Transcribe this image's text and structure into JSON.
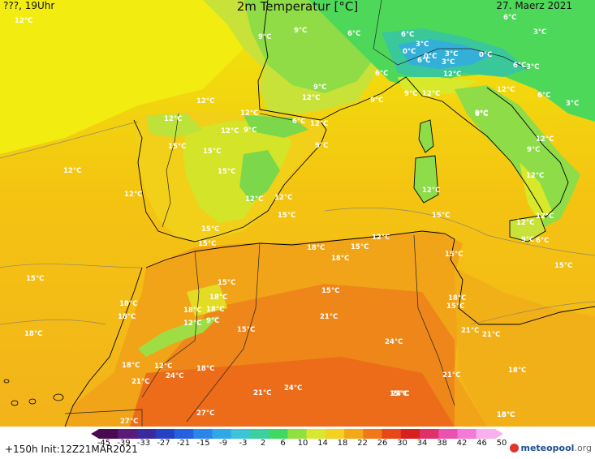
{
  "header": {
    "left": "???, 19Uhr",
    "title": "2m Temperatur [°C]",
    "right": "27. Maerz 2021"
  },
  "footer": {
    "run": "+150h  Init:12Z21MAR2021",
    "logo_name": "meteopool",
    "logo_suffix": ".org"
  },
  "legend": {
    "ticks": [
      "-45",
      "-39",
      "-33",
      "-27",
      "-21",
      "-15",
      "-9",
      "-3",
      "2",
      "6",
      "10",
      "14",
      "18",
      "22",
      "26",
      "30",
      "34",
      "38",
      "42",
      "46",
      "50"
    ],
    "colors": [
      "#4a0a52",
      "#5c1a78",
      "#3a2a9e",
      "#2540c4",
      "#2460e0",
      "#2a86e8",
      "#30a8e8",
      "#3cc4d8",
      "#3ad0a0",
      "#40d860",
      "#90e040",
      "#d8e830",
      "#f4d020",
      "#f4a818",
      "#f07818",
      "#e84818",
      "#d82020",
      "#e0306a",
      "#ec50b0",
      "#f47ad8",
      "#fab0ec"
    ]
  },
  "map_labels": [
    {
      "text": "12°C"
    },
    {
      "text": "9°C"
    },
    {
      "text": "9°C"
    },
    {
      "text": "6°C"
    },
    {
      "text": "6°C"
    },
    {
      "text": "6°C"
    },
    {
      "text": "3°C"
    },
    {
      "text": "3°C"
    },
    {
      "text": "3°C"
    },
    {
      "text": "0°C"
    },
    {
      "text": "6°C"
    },
    {
      "text": "3°C"
    },
    {
      "text": "0°C"
    },
    {
      "text": "0°C"
    },
    {
      "text": "6°C"
    },
    {
      "text": "3°C"
    },
    {
      "text": "9°C"
    },
    {
      "text": "6°C"
    },
    {
      "text": "12°C"
    },
    {
      "text": "9°C"
    },
    {
      "text": "12°C"
    },
    {
      "text": "12°C"
    },
    {
      "text": "6°C"
    },
    {
      "text": "3°C"
    },
    {
      "text": "12°C"
    },
    {
      "text": "9°C"
    },
    {
      "text": "12°C"
    },
    {
      "text": "9°C"
    },
    {
      "text": "6°C"
    },
    {
      "text": "12°C"
    },
    {
      "text": "12°C"
    },
    {
      "text": "12°C"
    },
    {
      "text": "9°C"
    },
    {
      "text": "6°C"
    },
    {
      "text": "12°C"
    },
    {
      "text": "9°C"
    },
    {
      "text": "12°C"
    },
    {
      "text": "12°C"
    },
    {
      "text": "15°C"
    },
    {
      "text": "15°C"
    },
    {
      "text": "15°C"
    },
    {
      "text": "12°C"
    },
    {
      "text": "9°C"
    },
    {
      "text": "12°C"
    },
    {
      "text": "12°C"
    },
    {
      "text": "12°C"
    },
    {
      "text": "12°C"
    },
    {
      "text": "15°C"
    },
    {
      "text": "12°C"
    },
    {
      "text": "12°C"
    },
    {
      "text": "15°C"
    },
    {
      "text": "15°C"
    },
    {
      "text": "15°C"
    },
    {
      "text": "15°C"
    },
    {
      "text": "9°C"
    },
    {
      "text": "6°C"
    },
    {
      "text": "12°C"
    },
    {
      "text": "15°C"
    },
    {
      "text": "18°C"
    },
    {
      "text": "15°C"
    },
    {
      "text": "18°C"
    },
    {
      "text": "15°C"
    },
    {
      "text": "15°C"
    },
    {
      "text": "15°C"
    },
    {
      "text": "18°C"
    },
    {
      "text": "18°C"
    },
    {
      "text": "18°C"
    },
    {
      "text": "18°C"
    },
    {
      "text": "18°C"
    },
    {
      "text": "15°C"
    },
    {
      "text": "12°C"
    },
    {
      "text": "9°C"
    },
    {
      "text": "15°C"
    },
    {
      "text": "21°C"
    },
    {
      "text": "18°C"
    },
    {
      "text": "21°C"
    },
    {
      "text": "21°C"
    },
    {
      "text": "18°C"
    },
    {
      "text": "18°C"
    },
    {
      "text": "12°C"
    },
    {
      "text": "24°C"
    },
    {
      "text": "18°C"
    },
    {
      "text": "24°C"
    },
    {
      "text": "18°C"
    },
    {
      "text": "21°C"
    },
    {
      "text": "18°C"
    },
    {
      "text": "21°C"
    },
    {
      "text": "21°C"
    },
    {
      "text": "24°C"
    },
    {
      "text": "24°C"
    },
    {
      "text": "27°C"
    },
    {
      "text": "27°C"
    },
    {
      "text": "18°C"
    },
    {
      "text": "15°C"
    }
  ]
}
